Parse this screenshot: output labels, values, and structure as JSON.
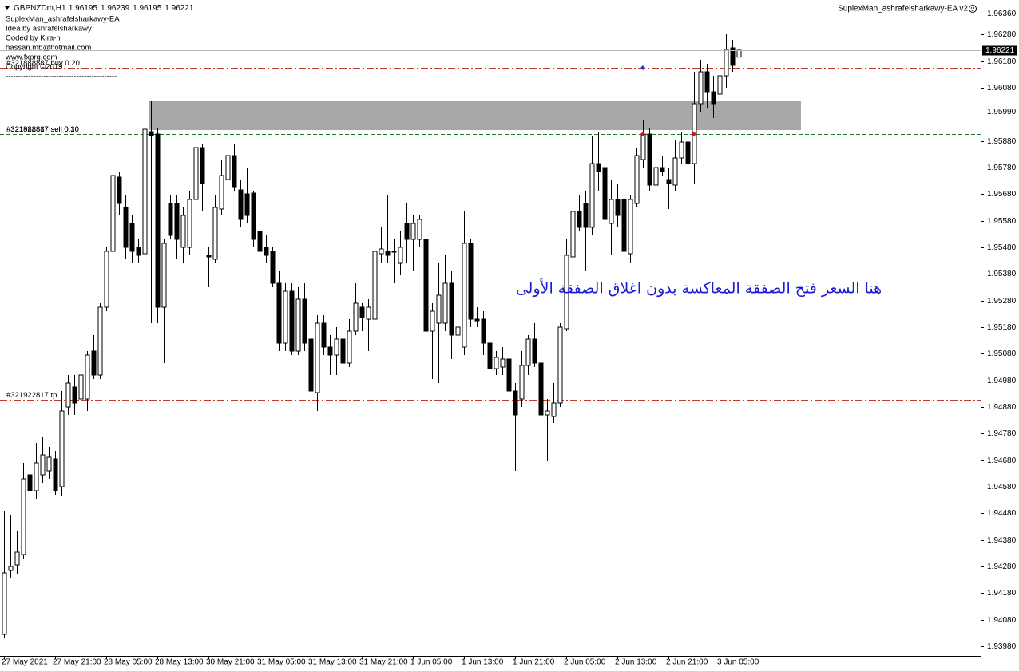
{
  "chart_data": {
    "type": "candlestick",
    "symbol": "GBPNZDm,H1",
    "ea_title": "SuplexMan_ashrafelsharkawy-EA v2",
    "info": [
      "SuplexMan_ashrafelsharkawy-EA",
      "Idea by ashrafelsharkawy",
      "Coded by Kira-h",
      "hassan.mb@hotmail.com",
      "www.fxprg.com",
      "Copyright ©2019",
      "--------------------------------------------"
    ],
    "annotation": "هنا السعر فتح الصفقة المعاكسة بدون اغلاق الصفقة الأولى",
    "up_color": "#ffffff",
    "down_color": "#000000",
    "categories": [
      "27 May 2021",
      null,
      null,
      null,
      null,
      null,
      null,
      null,
      "27 May 21:00",
      null,
      null,
      null,
      null,
      null,
      null,
      null,
      "28 May 05:00",
      null,
      null,
      null,
      null,
      null,
      null,
      null,
      "28 May 13:00",
      null,
      null,
      null,
      null,
      null,
      null,
      null,
      "30 May 21:00",
      null,
      null,
      null,
      null,
      null,
      null,
      null,
      "31 May 05:00",
      null,
      null,
      null,
      null,
      null,
      null,
      null,
      "31 May 13:00",
      null,
      null,
      null,
      null,
      null,
      null,
      null,
      "31 May 21:00",
      null,
      null,
      null,
      null,
      null,
      null,
      null,
      "1 Jun 05:00",
      null,
      null,
      null,
      null,
      null,
      null,
      null,
      "1 Jun 13:00",
      null,
      null,
      null,
      null,
      null,
      null,
      null,
      "1 Jun 21:00",
      null,
      null,
      null,
      null,
      null,
      null,
      null,
      "2 Jun 05:00",
      null,
      null,
      null,
      null,
      null,
      null,
      null,
      "2 Jun 13:00",
      null,
      null,
      null,
      null,
      null,
      null,
      null,
      "2 Jun 21:00",
      null,
      null,
      null,
      null,
      null,
      null,
      null,
      "3 Jun 05:00",
      null,
      null,
      null
    ],
    "open": [
      1.94025,
      1.94265,
      1.94286,
      1.94325,
      1.94625,
      1.94565,
      1.94625,
      1.9464,
      1.94685,
      1.9458,
      1.9488,
      1.94955,
      1.9491,
      1.9491,
      1.9509,
      1.95,
      1.95255,
      1.95465,
      1.95744,
      1.9563,
      1.9557,
      1.9548,
      1.95456,
      1.95915,
      1.95906,
      1.95255,
      1.95645,
      1.95645,
      1.9548,
      1.9548,
      1.9566,
      1.95855,
      1.9545,
      1.95435,
      1.95624,
      1.95735,
      1.95825,
      1.95696,
      1.95681,
      1.95684,
      1.9554,
      1.9548,
      1.95465,
      1.95345,
      1.9512,
      1.95315,
      1.9509,
      1.95285,
      1.95135,
      1.94934,
      1.95195,
      1.95105,
      1.95075,
      1.95135,
      1.95045,
      1.95165,
      1.95255,
      1.9521,
      1.9521,
      1.95456,
      1.95465,
      1.95465,
      1.9542,
      1.9557,
      1.9551,
      1.9551,
      1.9551,
      1.95165,
      1.95195,
      1.95195,
      1.95345,
      1.9515,
      1.95105,
      1.95495,
      1.9521,
      1.9521,
      1.9512,
      1.95024,
      1.9503,
      1.9506,
      1.9494,
      1.9491,
      1.95036,
      1.95135,
      1.95045,
      1.9485,
      1.94844,
      1.94895,
      1.95174,
      1.95444,
      1.95615,
      1.95645,
      1.95555,
      1.95795,
      1.9578,
      1.9557,
      1.9566,
      1.9566,
      1.95456,
      1.95645,
      1.9581,
      1.95906,
      1.95714,
      1.9578,
      1.95735,
      1.95714,
      1.95816,
      1.95876,
      1.95795,
      1.9602,
      1.9614,
      1.96065,
      1.96056,
      1.96125,
      1.9623,
      1.96195
    ],
    "high": [
      1.9449,
      1.94475,
      1.94415,
      1.9467,
      1.94685,
      1.94745,
      1.94766,
      1.9473,
      1.94715,
      1.9494,
      1.95,
      1.95,
      1.95045,
      1.9509,
      1.9515,
      1.9527,
      1.9548,
      1.95795,
      1.95765,
      1.95675,
      1.956,
      1.9551,
      1.96005,
      1.96029,
      1.9593,
      1.9551,
      1.95675,
      1.95675,
      1.9563,
      1.9569,
      1.95885,
      1.9587,
      1.9548,
      1.95675,
      1.9581,
      1.9596,
      1.9587,
      1.95735,
      1.9578,
      1.9569,
      1.9557,
      1.95525,
      1.9548,
      1.9539,
      1.95345,
      1.95345,
      1.9533,
      1.95345,
      1.95165,
      1.95225,
      1.95225,
      1.9515,
      1.9518,
      1.95165,
      1.9521,
      1.95345,
      1.9527,
      1.95285,
      1.9548,
      1.95555,
      1.95675,
      1.9551,
      1.9554,
      1.95645,
      1.956,
      1.956,
      1.9554,
      1.9527,
      1.9542,
      1.9545,
      1.9539,
      1.9521,
      1.95615,
      1.9551,
      1.95255,
      1.9524,
      1.95165,
      1.9509,
      1.95105,
      1.95075,
      1.9497,
      1.9509,
      1.9515,
      1.95195,
      1.9506,
      1.9491,
      1.9497,
      1.95195,
      1.9551,
      1.95765,
      1.95675,
      1.9569,
      1.959,
      1.95915,
      1.95795,
      1.95735,
      1.9572,
      1.9569,
      1.95675,
      1.95855,
      1.9596,
      1.9593,
      1.95825,
      1.95825,
      1.9578,
      1.95885,
      1.95915,
      1.959,
      1.9614,
      1.96185,
      1.9617,
      1.96125,
      1.9617,
      1.96284,
      1.9626,
      1.96239
    ],
    "low": [
      1.9401,
      1.94235,
      1.9425,
      1.9431,
      1.94505,
      1.94535,
      1.94595,
      1.9461,
      1.9455,
      1.94544,
      1.9485,
      1.9485,
      1.94865,
      1.94865,
      1.94985,
      1.94985,
      1.9524,
      1.9542,
      1.956,
      1.95435,
      1.9542,
      1.9542,
      1.95435,
      1.95195,
      1.95195,
      1.95045,
      1.9551,
      1.95435,
      1.9542,
      1.9545,
      1.95615,
      1.95615,
      1.9533,
      1.9542,
      1.956,
      1.9572,
      1.9569,
      1.95555,
      1.9557,
      1.9548,
      1.9545,
      1.9542,
      1.9533,
      1.9509,
      1.9509,
      1.95075,
      1.95075,
      1.9509,
      1.94925,
      1.94865,
      1.95075,
      1.95,
      1.95,
      1.95,
      1.9503,
      1.9515,
      1.95165,
      1.9509,
      1.95195,
      1.9542,
      1.9542,
      1.95345,
      1.95375,
      1.9542,
      1.9539,
      1.9548,
      1.95135,
      1.94985,
      1.9497,
      1.95165,
      1.9506,
      1.94985,
      1.95075,
      1.9518,
      1.9518,
      1.95075,
      1.95015,
      1.95,
      1.95,
      1.94925,
      1.9464,
      1.9488,
      1.95,
      1.9503,
      1.94805,
      1.94676,
      1.9482,
      1.9488,
      1.95165,
      1.9542,
      1.9554,
      1.9539,
      1.95525,
      1.9569,
      1.95555,
      1.9545,
      1.95555,
      1.9545,
      1.9542,
      1.9563,
      1.9578,
      1.9569,
      1.95705,
      1.9575,
      1.95624,
      1.9569,
      1.95795,
      1.9578,
      1.9572,
      1.9599,
      1.96005,
      1.95966,
      1.96005,
      1.9608,
      1.9614,
      1.96195
    ],
    "close": [
      1.94256,
      1.9428,
      1.94334,
      1.9461,
      1.94565,
      1.9467,
      1.947,
      1.94691,
      1.94565,
      1.94865,
      1.9497,
      1.94895,
      1.95,
      1.95075,
      1.95,
      1.95255,
      1.95465,
      1.9575,
      1.95645,
      1.9548,
      1.95465,
      1.9545,
      1.95924,
      1.959,
      1.95255,
      1.95495,
      1.95525,
      1.9551,
      1.956,
      1.9566,
      1.95855,
      1.9572,
      1.95444,
      1.9563,
      1.9575,
      1.95825,
      1.95705,
      1.95585,
      1.956,
      1.9551,
      1.95465,
      1.9545,
      1.95345,
      1.9512,
      1.95315,
      1.9509,
      1.95285,
      1.9512,
      1.9494,
      1.95195,
      1.95105,
      1.95075,
      1.95135,
      1.95045,
      1.95165,
      1.9527,
      1.95216,
      1.95255,
      1.95465,
      1.95474,
      1.9545,
      1.95462,
      1.9548,
      1.9551,
      1.9557,
      1.95585,
      1.95165,
      1.9524,
      1.953,
      1.95345,
      1.9515,
      1.9518,
      1.95495,
      1.9521,
      1.95204,
      1.9512,
      1.95024,
      1.95066,
      1.9506,
      1.9494,
      1.9485,
      1.95036,
      1.95135,
      1.95045,
      1.9485,
      1.94865,
      1.94895,
      1.9518,
      1.9545,
      1.95615,
      1.95555,
      1.95555,
      1.95795,
      1.95765,
      1.95585,
      1.9566,
      1.956,
      1.95465,
      1.9566,
      1.95825,
      1.95906,
      1.95714,
      1.9578,
      1.95765,
      1.9572,
      1.95816,
      1.95876,
      1.95795,
      1.9602,
      1.9614,
      1.96065,
      1.9602,
      1.96125,
      1.96224,
      1.96164,
      1.96221
    ],
    "ylim": [
      1.93944,
      1.9641
    ],
    "yticks": [
      {
        "value": 1.9636,
        "label": "1.96360"
      },
      {
        "value": 1.9628,
        "label": "1.96280"
      },
      {
        "value": 1.9618,
        "label": "1.96180"
      },
      {
        "value": 1.9608,
        "label": "1.96080"
      },
      {
        "value": 1.9599,
        "label": "1.95990"
      },
      {
        "value": 1.9588,
        "label": "1.95880"
      },
      {
        "value": 1.9578,
        "label": "1.95780"
      },
      {
        "value": 1.9568,
        "label": "1.95680"
      },
      {
        "value": 1.9558,
        "label": "1.95580"
      },
      {
        "value": 1.9548,
        "label": "1.95480"
      },
      {
        "value": 1.9538,
        "label": "1.95380"
      },
      {
        "value": 1.9528,
        "label": "1.95280"
      },
      {
        "value": 1.9518,
        "label": "1.95180"
      },
      {
        "value": 1.9508,
        "label": "1.95080"
      },
      {
        "value": 1.9498,
        "label": "1.94980"
      },
      {
        "value": 1.9488,
        "label": "1.94880"
      },
      {
        "value": 1.9478,
        "label": "1.94780"
      },
      {
        "value": 1.9468,
        "label": "1.94680"
      },
      {
        "value": 1.9458,
        "label": "1.94580"
      },
      {
        "value": 1.9448,
        "label": "1.94480"
      },
      {
        "value": 1.9438,
        "label": "1.94380"
      },
      {
        "value": 1.9428,
        "label": "1.94280"
      },
      {
        "value": 1.9418,
        "label": "1.94180"
      },
      {
        "value": 1.9408,
        "label": "1.94080"
      },
      {
        "value": 1.9398,
        "label": "1.93980"
      }
    ],
    "levels": [
      {
        "label": "#321888887 buy 0.20",
        "value": 1.96155,
        "color": "#c0392b",
        "dash": "dashdot"
      },
      {
        "label": "#321888887 sell 0.10",
        "value": 1.95906,
        "color": "#1e7d1e",
        "dash": "dash"
      },
      {
        "label": "#321922817 sell 0.30",
        "value": 1.95906,
        "color": "#1e7d1e",
        "dash": "dash"
      },
      {
        "label": "#321922817 tp",
        "value": 1.94907,
        "color": "#c0392b",
        "dash": "dashdot"
      }
    ],
    "zone": {
      "top": 1.96029,
      "bottom": 1.95921,
      "start": 23,
      "color": "#a8a8a8"
    },
    "markers": [
      {
        "index": 100,
        "value": 1.96155,
        "color": "#1f3fd6"
      },
      {
        "index": 100,
        "value": 1.95906,
        "color": "#e01010"
      },
      {
        "index": 108,
        "value": 1.95906,
        "color": "#e01010"
      }
    ]
  }
}
